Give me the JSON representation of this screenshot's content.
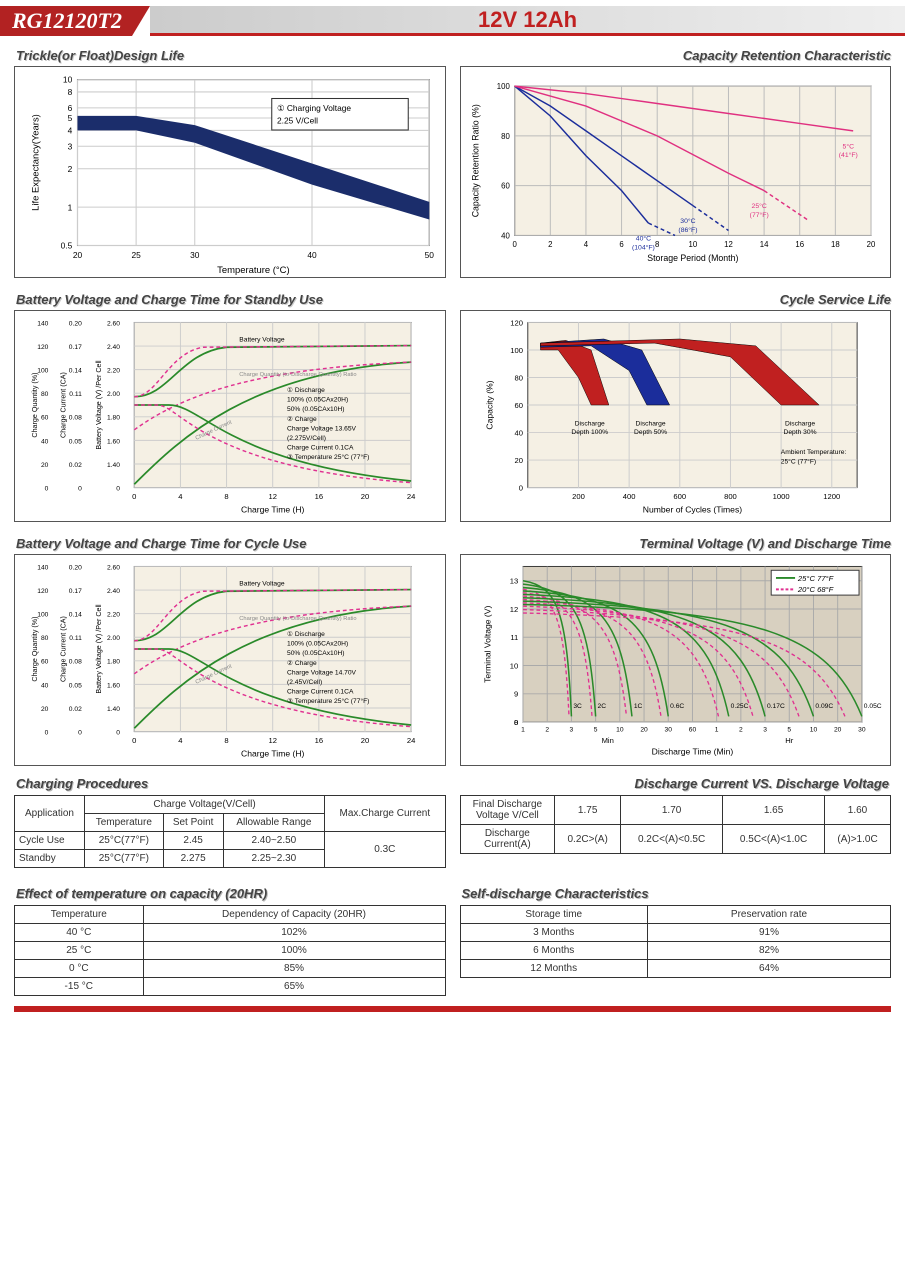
{
  "header": {
    "model": "RG12120T2",
    "spec": "12V 12Ah"
  },
  "panels": {
    "trickle": {
      "title": "Trickle(or Float)Design Life",
      "xlabel": "Temperature (°C)",
      "ylabel": "Life Expectancy(Years)",
      "xticks": [
        "20",
        "25",
        "30",
        "40",
        "50"
      ],
      "yticks": [
        "0.5",
        "1",
        "2",
        "3",
        "4",
        "5",
        "6",
        "8",
        "10"
      ],
      "note": "① Charging Voltage\n2.25 V/Cell",
      "band_upper": [
        [
          20,
          5.2
        ],
        [
          25,
          5.2
        ],
        [
          30,
          4.4
        ],
        [
          40,
          2.2
        ],
        [
          50,
          1.1
        ]
      ],
      "band_lower": [
        [
          20,
          4.0
        ],
        [
          25,
          4.0
        ],
        [
          30,
          3.2
        ],
        [
          40,
          1.5
        ],
        [
          50,
          0.8
        ]
      ],
      "band_color": "#1b2d6b",
      "grid_color": "#cccccc",
      "bg": "#ffffff"
    },
    "retention": {
      "title": "Capacity Retention Characteristic",
      "xlabel": "Storage Period (Month)",
      "ylabel": "Capacity Retention Ratio (%)",
      "xticks": [
        "0",
        "2",
        "4",
        "6",
        "8",
        "10",
        "12",
        "14",
        "16",
        "18",
        "20"
      ],
      "yticks": [
        "40",
        "60",
        "80",
        "100"
      ],
      "curves": [
        {
          "label": "40°C\n(104°F)",
          "color": "#1b2d9b",
          "x": [
            0,
            2,
            4,
            6,
            7.5
          ],
          "y": [
            100,
            88,
            72,
            58,
            45
          ],
          "dash": [
            7.5,
            9
          ],
          "dy": [
            45,
            40
          ]
        },
        {
          "label": "30°C\n(86°F)",
          "color": "#1b2d9b",
          "x": [
            0,
            2,
            4,
            6,
            8,
            10
          ],
          "y": [
            100,
            92,
            82,
            72,
            62,
            52
          ],
          "dash": [
            10,
            12
          ],
          "dy": [
            52,
            42
          ]
        },
        {
          "label": "25°C\n(77°F)",
          "color": "#e03080",
          "x": [
            0,
            4,
            8,
            12,
            14
          ],
          "y": [
            100,
            92,
            80,
            65,
            58
          ],
          "dash": [
            14,
            16.5
          ],
          "dy": [
            58,
            46
          ]
        },
        {
          "label": "5°C\n(41°F)",
          "color": "#e03080",
          "x": [
            0,
            4,
            8,
            12,
            16,
            19
          ],
          "y": [
            100,
            97,
            93,
            89,
            85,
            82
          ],
          "dash": [],
          "dy": []
        }
      ],
      "bg": "#f5f0e4",
      "grid_color": "#bbb"
    },
    "standby": {
      "title": "Battery Voltage and Charge Time for Standby Use",
      "xlabel": "Charge Time (H)",
      "y1": "Charge Quantity (%)",
      "y2": "Charge Current (CA)",
      "y3": "Battery Voltage (V) /Per Cell",
      "xticks": [
        "0",
        "4",
        "8",
        "12",
        "16",
        "20",
        "24"
      ],
      "y1ticks": [
        "0",
        "20",
        "40",
        "60",
        "80",
        "100",
        "120",
        "140"
      ],
      "y2ticks": [
        "0",
        "0.02",
        "0.05",
        "0.08",
        "0.11",
        "0.14",
        "0.17",
        "0.20"
      ],
      "y3ticks": [
        "0",
        "1.40",
        "1.60",
        "1.80",
        "2.00",
        "2.20",
        "2.40",
        "2.60"
      ],
      "notes": [
        "① Discharge",
        "100% (0.05CAx20H)",
        "50% (0.05CAx10H)",
        "② Charge",
        "Charge Voltage 13.65V",
        "(2.275V/Cell)",
        "Charge Current 0.1CA",
        "③ Temperature 25°C (77°F)"
      ],
      "labels": [
        "Battery Voltage",
        "Charge Quantity (to-Discharge Quantity) Ratio",
        "Charge Current"
      ],
      "green": "#2a8a2a",
      "pink": "#e03090",
      "bg": "#f5f0e4"
    },
    "cycle_life": {
      "title": "Cycle Service Life",
      "xlabel": "Number of Cycles (Times)",
      "ylabel": "Capacity (%)",
      "xticks": [
        "200",
        "400",
        "600",
        "800",
        "1000",
        "1200"
      ],
      "yticks": [
        "0",
        "20",
        "40",
        "60",
        "80",
        "100",
        "120"
      ],
      "fans": [
        {
          "label": "Discharge\nDepth 100%",
          "color": "#c02020",
          "outer": [
            [
              50,
              105
            ],
            [
              150,
              107
            ],
            [
              250,
              100
            ],
            [
              320,
              60
            ]
          ],
          "inner": [
            [
              50,
              100
            ],
            [
              120,
              100
            ],
            [
              200,
              80
            ],
            [
              250,
              60
            ]
          ]
        },
        {
          "label": "Discharge\nDepth 50%",
          "color": "#1b2d9b",
          "outer": [
            [
              50,
              105
            ],
            [
              300,
              108
            ],
            [
              450,
              100
            ],
            [
              560,
              60
            ]
          ],
          "inner": [
            [
              50,
              102
            ],
            [
              250,
              103
            ],
            [
              400,
              85
            ],
            [
              470,
              60
            ]
          ]
        },
        {
          "label": "Discharge\nDepth 30%",
          "color": "#c02020",
          "outer": [
            [
              50,
              105
            ],
            [
              600,
              108
            ],
            [
              900,
              103
            ],
            [
              1150,
              60
            ]
          ],
          "inner": [
            [
              50,
              103
            ],
            [
              500,
              105
            ],
            [
              800,
              95
            ],
            [
              1000,
              60
            ]
          ]
        }
      ],
      "note": "Ambient Temperature:\n25°C (77°F)",
      "bg": "#f5f0e4"
    },
    "cycle_charge": {
      "title": "Battery Voltage and Charge Time for Cycle Use",
      "notes": [
        "① Discharge",
        "100% (0.05CAx20H)",
        "50% (0.05CAx10H)",
        "② Charge",
        "Charge Voltage 14.70V",
        "(2.45V/Cell)",
        "Charge Current 0.1CA",
        "③ Temperature 25°C (77°F)"
      ]
    },
    "terminal": {
      "title": "Terminal Voltage (V) and Discharge Time",
      "xlabel": "Discharge Time (Min)",
      "ylabel": "Terminal Voltage (V)",
      "yticks": [
        "0",
        "8",
        "9",
        "10",
        "11",
        "12",
        "13"
      ],
      "xunits": [
        "Min",
        "Hr"
      ],
      "xticks": [
        "1",
        "2",
        "3",
        "5",
        "10",
        "20",
        "30",
        "60",
        "1",
        "2",
        "3",
        "5",
        "10",
        "20",
        "30"
      ],
      "legend": [
        {
          "label": "25°C 77°F",
          "color": "#2a8a2a",
          "dash": false
        },
        {
          "label": "20°C 68°F",
          "color": "#e03090",
          "dash": true
        }
      ],
      "c_labels": [
        "3C",
        "2C",
        "1C",
        "0.6C",
        "0.25C",
        "0.17C",
        "0.09C",
        "0.05C"
      ],
      "bg": "#d8d0c0"
    }
  },
  "tables": {
    "charging": {
      "title": "Charging Procedures",
      "headers": [
        "Application",
        "Charge Voltage(V/Cell)",
        "",
        "",
        "Max.Charge Current"
      ],
      "sub": [
        "",
        "Temperature",
        "Set Point",
        "Allowable Range",
        ""
      ],
      "rows": [
        [
          "Cycle Use",
          "25°C(77°F)",
          "2.45",
          "2.40~2.50",
          "0.3C"
        ],
        [
          "Standby",
          "25°C(77°F)",
          "2.275",
          "2.25~2.30",
          ""
        ]
      ]
    },
    "discharge": {
      "title": "Discharge Current VS. Discharge Voltage",
      "row1": [
        "Final Discharge Voltage V/Cell",
        "1.75",
        "1.70",
        "1.65",
        "1.60"
      ],
      "row2": [
        "Discharge Current(A)",
        "0.2C>(A)",
        "0.2C<(A)<0.5C",
        "0.5C<(A)<1.0C",
        "(A)>1.0C"
      ]
    },
    "temp_cap": {
      "title": "Effect of temperature on capacity (20HR)",
      "headers": [
        "Temperature",
        "Dependency of Capacity (20HR)"
      ],
      "rows": [
        [
          "40 °C",
          "102%"
        ],
        [
          "25 °C",
          "100%"
        ],
        [
          "0 °C",
          "85%"
        ],
        [
          "-15 °C",
          "65%"
        ]
      ]
    },
    "self_discharge": {
      "title": "Self-discharge Characteristics",
      "headers": [
        "Storage time",
        "Preservation rate"
      ],
      "rows": [
        [
          "3 Months",
          "91%"
        ],
        [
          "6 Months",
          "82%"
        ],
        [
          "12 Months",
          "64%"
        ]
      ]
    }
  }
}
